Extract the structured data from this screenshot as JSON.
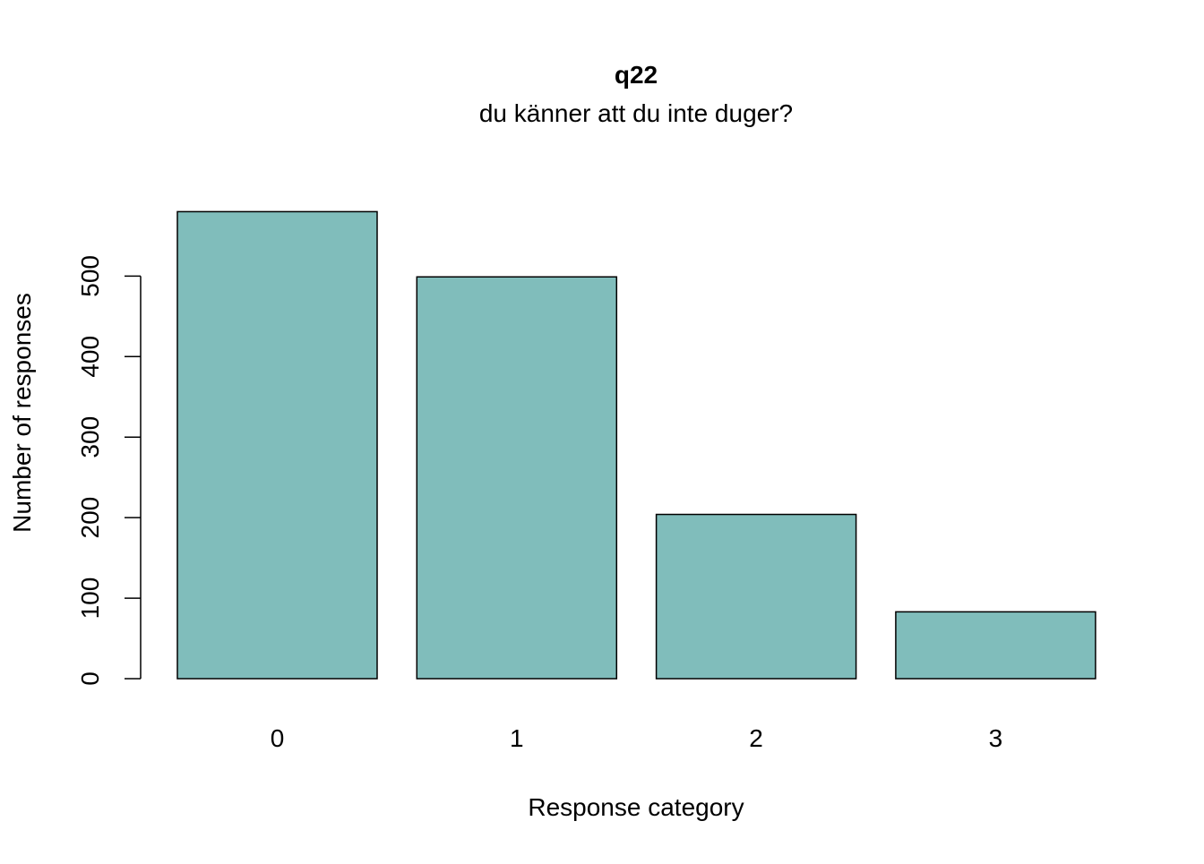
{
  "chart_data": {
    "type": "bar",
    "title": "q22",
    "subtitle": "du känner att du inte duger?",
    "xlabel": "Response category",
    "ylabel": "Number of responses",
    "categories": [
      "0",
      "1",
      "2",
      "3"
    ],
    "values": [
      580,
      499,
      204,
      83
    ],
    "ylim": [
      0,
      580
    ],
    "yticks": [
      0,
      100,
      200,
      300,
      400,
      500
    ],
    "grid": false,
    "bar_color": "#80BDBB",
    "bar_border_color": "#000000"
  }
}
